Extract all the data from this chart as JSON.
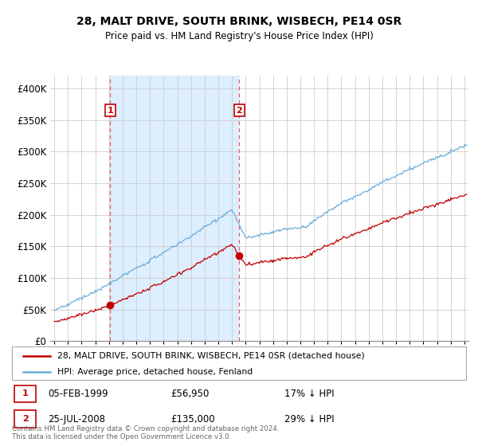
{
  "title": "28, MALT DRIVE, SOUTH BRINK, WISBECH, PE14 0SR",
  "subtitle": "Price paid vs. HM Land Registry's House Price Index (HPI)",
  "legend_line1": "28, MALT DRIVE, SOUTH BRINK, WISBECH, PE14 0SR (detached house)",
  "legend_line2": "HPI: Average price, detached house, Fenland",
  "sale1_date": "05-FEB-1999",
  "sale1_price": "£56,950",
  "sale1_hpi": "17% ↓ HPI",
  "sale2_date": "25-JUL-2008",
  "sale2_price": "£135,000",
  "sale2_hpi": "29% ↓ HPI",
  "footer": "Contains HM Land Registry data © Crown copyright and database right 2024.\nThis data is licensed under the Open Government Licence v3.0.",
  "hpi_color": "#6aaed6",
  "price_color": "#c00000",
  "shade_color": "#ddeeff",
  "dashed_color": "#e06060",
  "ylim_min": 0,
  "ylim_max": 420000,
  "yticks": [
    0,
    50000,
    100000,
    150000,
    200000,
    250000,
    300000,
    350000,
    400000
  ],
  "sale1_x": 1999.083,
  "sale1_y": 56950,
  "sale2_x": 2008.542,
  "sale2_y": 135000,
  "xmin": 1994.7,
  "xmax": 2025.3
}
